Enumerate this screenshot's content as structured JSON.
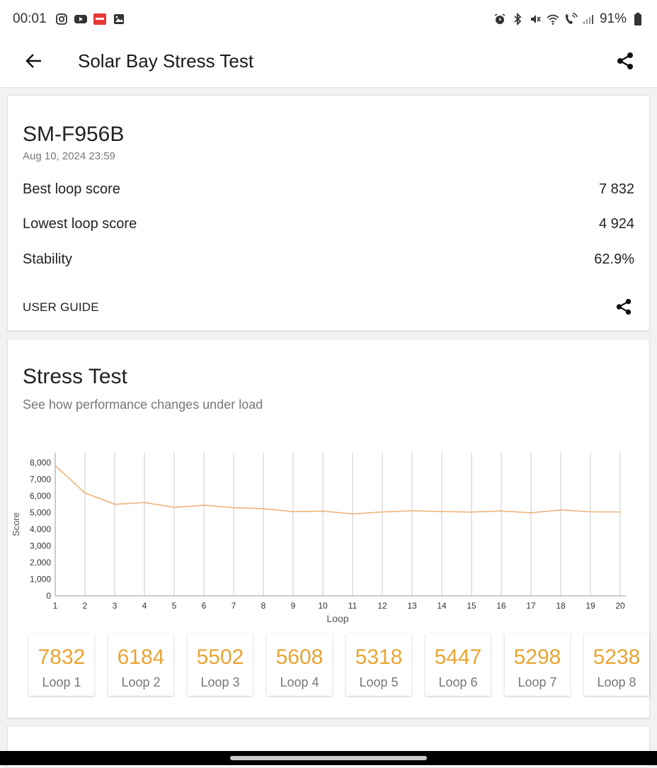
{
  "status_bar": {
    "time": "00:01",
    "notification_icons": [
      "instagram-icon",
      "youtube-icon",
      "news-app-icon",
      "gallery-icon"
    ],
    "system_icons": [
      "alarm-icon",
      "bluetooth-icon",
      "mute-icon",
      "wifi-icon",
      "wifi-calling-icon",
      "signal-icon"
    ],
    "battery": "91%"
  },
  "app_bar": {
    "title": "Solar Bay Stress Test"
  },
  "summary": {
    "device": "SM-F956B",
    "date": "Aug 10, 2024 23:59",
    "metrics": [
      {
        "label": "Best loop score",
        "value": "7 832"
      },
      {
        "label": "Lowest loop score",
        "value": "4 924"
      },
      {
        "label": "Stability",
        "value": "62.9%"
      }
    ],
    "user_guide": "USER GUIDE"
  },
  "stress": {
    "title": "Stress Test",
    "subtitle": "See how performance changes under load"
  },
  "chart_data": {
    "type": "line",
    "x": [
      1,
      2,
      3,
      4,
      5,
      6,
      7,
      8,
      9,
      10,
      11,
      12,
      13,
      14,
      15,
      16,
      17,
      18,
      19,
      20
    ],
    "series": [
      {
        "values": [
          7832,
          6184,
          5502,
          5608,
          5318,
          5447,
          5298,
          5238,
          5060,
          5090,
          4924,
          5040,
          5110,
          5070,
          5030,
          5100,
          4990,
          5160,
          5050,
          5040
        ]
      }
    ],
    "xlabel": "Loop",
    "ylabel": "Score",
    "yticks": [
      "0",
      "1,000",
      "2,000",
      "3,000",
      "4,000",
      "5,000",
      "6,000",
      "7,000",
      "8,000"
    ],
    "ylim": [
      0,
      8600
    ],
    "xlim": [
      1,
      20
    ],
    "grid": "vertical",
    "line_color": "#f0b27a"
  },
  "loops": [
    {
      "score": "7832",
      "label": "Loop 1"
    },
    {
      "score": "6184",
      "label": "Loop 2"
    },
    {
      "score": "5502",
      "label": "Loop 3"
    },
    {
      "score": "5608",
      "label": "Loop 4"
    },
    {
      "score": "5318",
      "label": "Loop 5"
    },
    {
      "score": "5447",
      "label": "Loop 6"
    },
    {
      "score": "5298",
      "label": "Loop 7"
    },
    {
      "score": "5238",
      "label": "Loop 8"
    }
  ],
  "colors": {
    "score_accent": "#e9a431",
    "chart_line": "#f0b27a"
  }
}
